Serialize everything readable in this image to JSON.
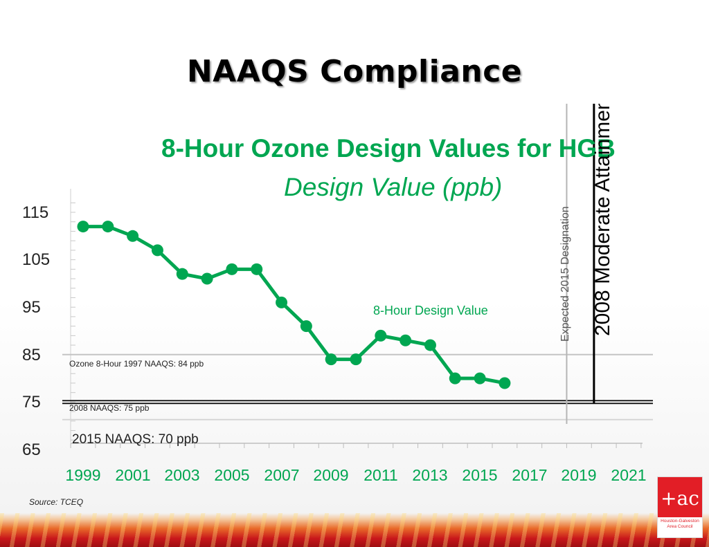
{
  "slide": {
    "title": "NAAQS Compliance",
    "source": "Source: TCEQ",
    "logo": {
      "text_line1": "Houston-Galveston",
      "text_line2": "Area Council"
    }
  },
  "colors": {
    "series": "#00a651",
    "title_green": "#00a651",
    "logo_red": "#e21e26"
  },
  "chart_data": {
    "type": "line",
    "title": "8-Hour Ozone Design Values for HGB",
    "subtitle": "Design Value (ppb)",
    "xlim": [
      1999,
      2021
    ],
    "ylim": [
      65,
      115
    ],
    "x_tick_labels": [
      "1999",
      "2001",
      "2003",
      "2005",
      "2007",
      "2009",
      "2011",
      "2013",
      "2015",
      "2017",
      "2019",
      "2021"
    ],
    "y_tick_labels": [
      "115",
      "105",
      "95",
      "85",
      "75",
      "65"
    ],
    "series": [
      {
        "name": "8-Hour Design Value",
        "x": [
          1999,
          2000,
          2001,
          2002,
          2003,
          2004,
          2005,
          2006,
          2007,
          2008,
          2009,
          2010,
          2011,
          2012,
          2013,
          2014,
          2015,
          2016
        ],
        "values": [
          112,
          112,
          110,
          107,
          102,
          101,
          103,
          103,
          96,
          91,
          84,
          84,
          89,
          88,
          87,
          80,
          80,
          79
        ]
      }
    ],
    "reference_lines": [
      {
        "label": "Ozone 8-Hour 1997 NAAQS: 84 ppb",
        "y": 85
      },
      {
        "label": "2008 NAAQS: 75 ppb",
        "y": 75
      },
      {
        "label": "2015 NAAQS: 70 ppb",
        "y": 70
      }
    ],
    "vertical_markers": [
      {
        "label": "Expected 2015 Designation",
        "x": 2018.5
      },
      {
        "label": "2008 Moderate Attainment",
        "x": 2019.6
      }
    ],
    "grid": false,
    "legend": "none"
  }
}
